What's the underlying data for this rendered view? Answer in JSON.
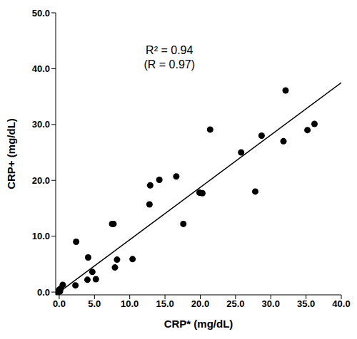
{
  "chart_data": {
    "type": "scatter",
    "x_label": "CRP* (mg/dL)",
    "y_label": "CRP+ (mg/dL)",
    "annotations": [
      "R² = 0.94",
      "(R = 0.97)"
    ],
    "x": [
      -0.2,
      -0.1,
      0,
      0.1,
      0.2,
      0.5,
      2.3,
      2.4,
      4.0,
      4.1,
      4.7,
      5.2,
      7.5,
      7.7,
      7.9,
      8.2,
      10.4,
      12.8,
      12.9,
      14.2,
      16.6,
      17.6,
      19.9,
      20.3,
      21.4,
      25.8,
      27.8,
      28.7,
      31.8,
      32.1,
      35.2,
      36.2
    ],
    "y": [
      0,
      0.2,
      0.4,
      0.1,
      0.6,
      1.3,
      1.2,
      9.0,
      2.2,
      6.2,
      3.6,
      2.3,
      12.2,
      12.2,
      4.4,
      5.8,
      5.9,
      15.7,
      19.1,
      20.1,
      20.7,
      12.2,
      17.8,
      17.7,
      29.1,
      25.0,
      18.0,
      28.0,
      27.0,
      36.1,
      29.0,
      30.1
    ],
    "color": "#000000",
    "marker": "circle",
    "fit": {
      "x": [
        0,
        40
      ],
      "y": [
        0,
        37.5
      ]
    },
    "xlim": [
      -0.5,
      40
    ],
    "ylim": [
      -0.5,
      50
    ],
    "xticks": [
      {
        "value": 0,
        "label": "0.0"
      },
      {
        "value": 5,
        "label": "5.0"
      },
      {
        "value": 10,
        "label": "10.0"
      },
      {
        "value": 15,
        "label": "15.0"
      },
      {
        "value": 20,
        "label": "20.0"
      },
      {
        "value": 25,
        "label": "25.0"
      },
      {
        "value": 30,
        "label": "30.0"
      },
      {
        "value": 35,
        "label": "35.0"
      },
      {
        "value": 40,
        "label": "40.0"
      }
    ],
    "yticks": [
      {
        "value": 0,
        "label": "0.0"
      },
      {
        "value": 10,
        "label": "10.0"
      },
      {
        "value": 20,
        "label": "20.0"
      },
      {
        "value": 30,
        "label": "30.0"
      },
      {
        "value": 40,
        "label": "40.0"
      },
      {
        "value": 50,
        "label": "50.0"
      }
    ],
    "grid": false
  }
}
